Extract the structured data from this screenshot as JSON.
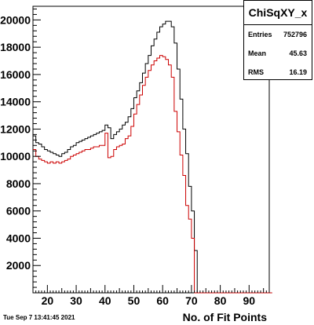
{
  "stats": {
    "title": "ChiSqXY_x",
    "rows": [
      {
        "key": "Entries",
        "value": "752796"
      },
      {
        "key": "Mean",
        "value": "45.63"
      },
      {
        "key": "RMS",
        "value": "16.19"
      }
    ]
  },
  "timestamp": "Tue Sep  7 13:41:45 2021",
  "chart_data": {
    "type": "line",
    "xlabel": "No. of Fit Points",
    "ylabel": "",
    "xlim": [
      15,
      97
    ],
    "ylim": [
      0,
      21000
    ],
    "xticks": [
      20,
      30,
      40,
      50,
      60,
      70,
      80,
      90
    ],
    "yticks": [
      2000,
      4000,
      6000,
      8000,
      10000,
      12000,
      14000,
      16000,
      18000,
      20000
    ],
    "grid": false,
    "legend": "none",
    "series": [
      {
        "color": "#000000",
        "x": [
          15,
          16,
          17,
          18,
          19,
          20,
          21,
          22,
          23,
          24,
          25,
          26,
          27,
          28,
          29,
          30,
          31,
          32,
          33,
          34,
          35,
          36,
          37,
          38,
          39,
          40,
          41,
          42,
          43,
          44,
          45,
          46,
          47,
          48,
          49,
          50,
          51,
          52,
          53,
          54,
          55,
          56,
          57,
          58,
          59,
          60,
          61,
          62,
          63,
          64,
          65,
          66,
          67,
          68,
          69,
          70,
          71,
          72,
          73,
          74,
          75,
          76,
          77,
          78,
          79,
          80,
          81,
          82,
          83,
          84,
          85,
          86,
          87,
          88,
          89,
          90,
          91,
          92,
          93,
          94,
          95,
          96,
          97
        ],
        "values": [
          11500,
          11000,
          10900,
          10700,
          10500,
          10400,
          10300,
          10200,
          10100,
          10000,
          10200,
          10300,
          10500,
          10700,
          10800,
          11000,
          11100,
          11200,
          11300,
          11400,
          11500,
          11600,
          11700,
          11800,
          11900,
          12300,
          12100,
          11300,
          11600,
          11800,
          12000,
          12300,
          12500,
          12900,
          13500,
          14300,
          14800,
          15400,
          16100,
          16800,
          17400,
          18100,
          18600,
          19100,
          19500,
          19700,
          19900,
          19900,
          19500,
          18300,
          16400,
          14200,
          12000,
          10200,
          7800,
          6000,
          3100,
          0,
          0,
          0,
          0,
          0,
          0,
          0,
          0,
          0,
          0,
          0,
          0,
          0,
          0,
          0,
          0,
          0,
          0,
          0,
          0,
          0,
          0,
          0,
          0,
          0,
          0
        ]
      },
      {
        "color": "#cc0000",
        "x": [
          15,
          16,
          17,
          18,
          19,
          20,
          21,
          22,
          23,
          24,
          25,
          26,
          27,
          28,
          29,
          30,
          31,
          32,
          33,
          34,
          35,
          36,
          37,
          38,
          39,
          40,
          41,
          42,
          43,
          44,
          45,
          46,
          47,
          48,
          49,
          50,
          51,
          52,
          53,
          54,
          55,
          56,
          57,
          58,
          59,
          60,
          61,
          62,
          63,
          64,
          65,
          66,
          67,
          68,
          69,
          70,
          71,
          72,
          73,
          74,
          75,
          76,
          77,
          78,
          79,
          80,
          81,
          82,
          83,
          84,
          85,
          86,
          87,
          88,
          89,
          90,
          91,
          92,
          93,
          94,
          95,
          96,
          97
        ],
        "values": [
          10500,
          10000,
          9800,
          9700,
          9600,
          9500,
          9600,
          9500,
          9600,
          9500,
          9600,
          9700,
          9800,
          10000,
          10100,
          10200,
          10300,
          10400,
          10500,
          10500,
          10600,
          10700,
          10700,
          10800,
          10800,
          11700,
          9900,
          10000,
          10500,
          10700,
          10800,
          10900,
          11300,
          11500,
          12200,
          13100,
          13800,
          14500,
          15200,
          15800,
          16300,
          16700,
          17000,
          17200,
          17400,
          17300,
          17100,
          16700,
          15800,
          13300,
          11800,
          10100,
          8600,
          6400,
          5400,
          4000,
          0,
          0,
          0,
          0,
          0,
          0,
          0,
          0,
          0,
          0,
          0,
          0,
          0,
          0,
          0,
          0,
          0,
          0,
          0,
          0,
          0,
          0,
          0,
          0,
          0,
          0,
          0
        ]
      }
    ]
  }
}
